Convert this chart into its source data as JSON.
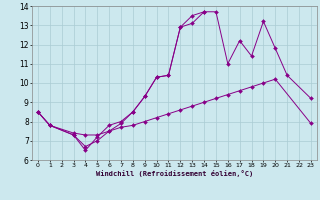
{
  "xlabel": "Windchill (Refroidissement éolien,°C)",
  "background_color": "#cce8ee",
  "grid_color": "#aaccd4",
  "line_color": "#880088",
  "xlim": [
    -0.5,
    23.5
  ],
  "ylim": [
    6,
    14
  ],
  "xticks": [
    0,
    1,
    2,
    3,
    4,
    5,
    6,
    7,
    8,
    9,
    10,
    11,
    12,
    13,
    14,
    15,
    16,
    17,
    18,
    19,
    20,
    21,
    22,
    23
  ],
  "yticks": [
    6,
    7,
    8,
    9,
    10,
    11,
    12,
    13,
    14
  ],
  "series1_x": [
    0,
    1,
    3,
    4,
    5,
    6,
    7,
    8,
    9,
    10,
    11,
    12,
    13,
    14,
    15,
    16,
    17,
    18,
    19,
    20,
    23
  ],
  "series1_y": [
    8.5,
    7.8,
    7.4,
    7.3,
    7.3,
    7.5,
    7.7,
    7.8,
    8.0,
    8.2,
    8.4,
    8.6,
    8.8,
    9.0,
    9.2,
    9.4,
    9.6,
    9.8,
    10.0,
    10.2,
    7.9
  ],
  "series2_x": [
    0,
    1,
    3,
    4,
    5,
    6,
    7,
    8,
    9,
    10,
    11,
    12,
    13,
    14,
    15,
    16,
    17,
    18,
    19,
    20,
    21,
    23
  ],
  "series2_y": [
    8.5,
    7.8,
    7.3,
    6.7,
    7.0,
    7.5,
    7.9,
    8.5,
    9.3,
    10.3,
    10.4,
    12.9,
    13.1,
    13.7,
    13.7,
    11.0,
    12.2,
    11.4,
    13.2,
    11.8,
    10.4,
    9.2
  ],
  "series3_x": [
    0,
    1,
    3,
    4,
    5,
    6,
    7,
    8,
    9,
    10,
    11,
    12,
    13,
    14
  ],
  "series3_y": [
    8.5,
    7.8,
    7.3,
    6.5,
    7.2,
    7.8,
    8.0,
    8.5,
    9.3,
    10.3,
    10.4,
    12.9,
    13.5,
    13.7
  ]
}
